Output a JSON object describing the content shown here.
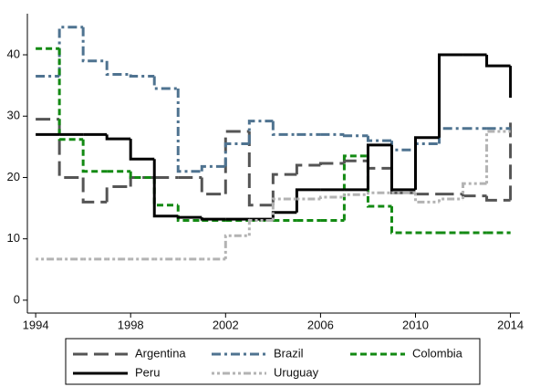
{
  "chart_data": {
    "type": "step",
    "x": [
      1994,
      1995,
      1996,
      1997,
      1998,
      1999,
      2000,
      2001,
      2002,
      2003,
      2004,
      2005,
      2006,
      2007,
      2008,
      2009,
      2010,
      2011,
      2012,
      2013,
      2014
    ],
    "series": [
      {
        "name": "Argentina",
        "color": "#555555",
        "values": [
          29.5,
          20,
          16,
          18.5,
          20,
          20,
          20,
          17.3,
          27.5,
          15.5,
          20.5,
          22,
          22.3,
          22.7,
          21.5,
          17.5,
          17.3,
          17.3,
          17,
          16.3,
          29
        ]
      },
      {
        "name": "Brazil",
        "color": "#4f7390",
        "values": [
          36.5,
          44.5,
          39,
          36.8,
          36.5,
          34.5,
          21,
          21.8,
          25.5,
          29.2,
          27,
          27,
          27,
          26.8,
          26,
          24.5,
          25.5,
          28,
          28,
          28,
          28
        ]
      },
      {
        "name": "Colombia",
        "color": "#138a13",
        "values": [
          41,
          26.2,
          21,
          21,
          20,
          15.5,
          13,
          13,
          13,
          13,
          13,
          13,
          13,
          23.5,
          15.3,
          11,
          11,
          11,
          11,
          11,
          11
        ]
      },
      {
        "name": "Peru",
        "color": "#000000",
        "values": [
          27,
          27,
          27,
          26.3,
          23,
          13.7,
          13.5,
          13.2,
          13.2,
          13.2,
          14.3,
          18,
          18,
          18,
          25.3,
          18,
          26.5,
          40,
          40,
          38.2,
          33
        ]
      },
      {
        "name": "Uruguay",
        "color": "#b3b3b3",
        "values": [
          6.7,
          6.7,
          6.7,
          6.7,
          6.7,
          6.7,
          6.7,
          6.7,
          10.5,
          13,
          16.5,
          16.5,
          16.8,
          17.2,
          17.5,
          17.5,
          16,
          16.5,
          19,
          27.5,
          27.5
        ]
      }
    ],
    "xlim": [
      1993.65,
      2014.4
    ],
    "xticks": [
      1994,
      1998,
      2002,
      2006,
      2010,
      2014
    ],
    "ylim": [
      -2.1,
      46.7
    ],
    "yticks": [
      0,
      10,
      20,
      30,
      40
    ],
    "legend": "bottom"
  }
}
